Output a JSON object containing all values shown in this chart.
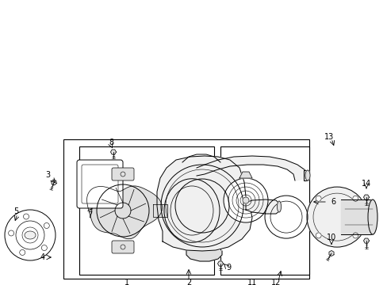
{
  "bg_color": "#ffffff",
  "line_color": "#000000",
  "gray_fill": "#e8e8e8",
  "light_gray": "#f2f2f2"
}
